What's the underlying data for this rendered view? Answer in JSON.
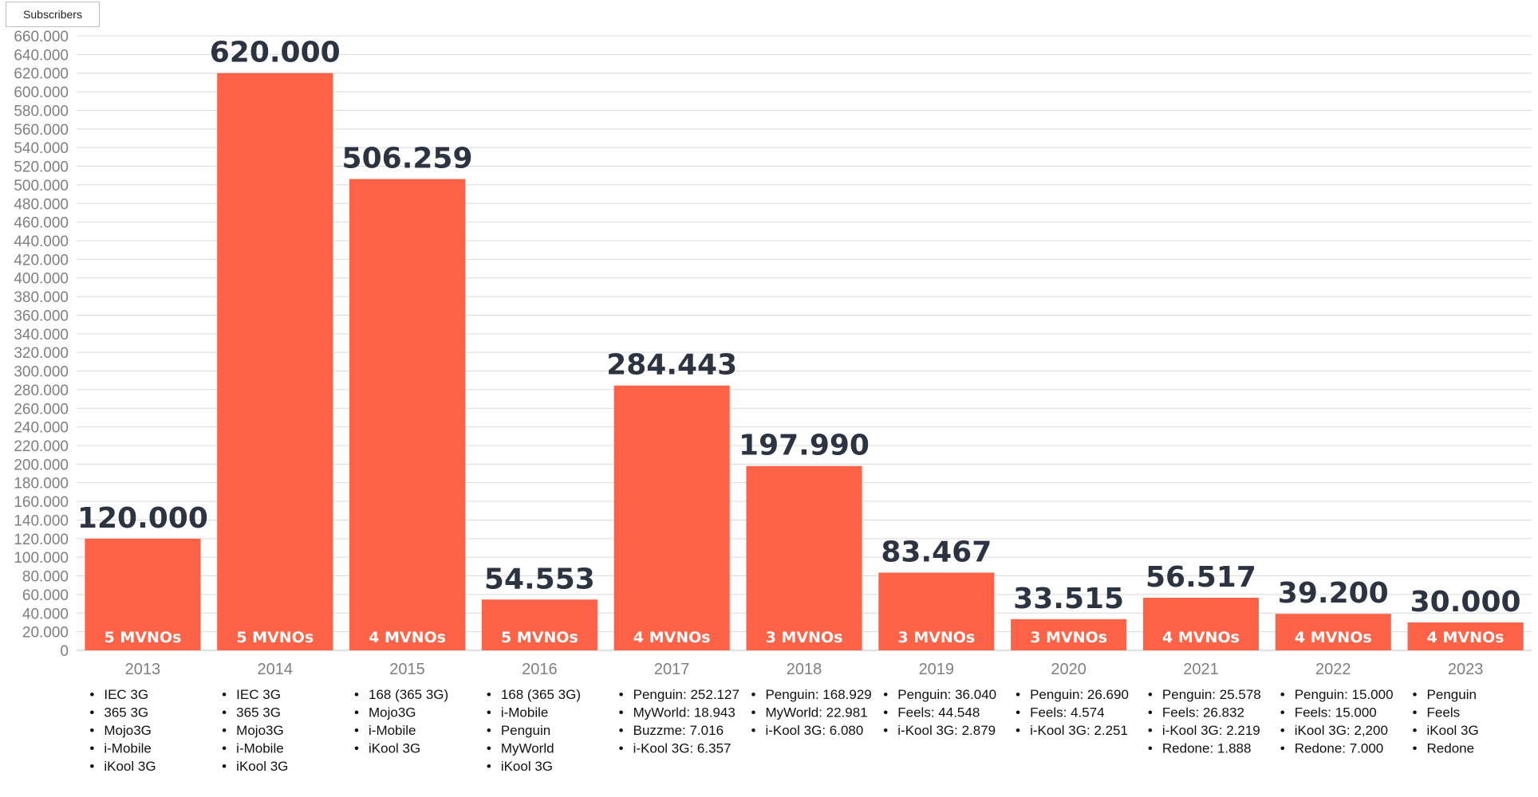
{
  "legend": {
    "label": "Subscribers"
  },
  "colors": {
    "bar": "#fe6347",
    "grid": "#d9d9d9",
    "axis_text": "#7f7f7f",
    "data_label": "#2b3440"
  },
  "chart_data": {
    "type": "bar",
    "ylim": [
      0,
      660000
    ],
    "ytick_step": 20000,
    "grid": true,
    "legend_position": "top-left",
    "series": [
      {
        "name": "Subscribers",
        "values": [
          120000,
          620000,
          506259,
          54553,
          284443,
          197990,
          83467,
          33515,
          56517,
          39200,
          30000
        ]
      }
    ],
    "categories": [
      "2013",
      "2014",
      "2015",
      "2016",
      "2017",
      "2018",
      "2019",
      "2020",
      "2021",
      "2022",
      "2023"
    ],
    "yticks": [
      "0",
      "20.000",
      "40.000",
      "60.000",
      "80.000",
      "100.000",
      "120.000",
      "140.000",
      "160.000",
      "180.000",
      "200.000",
      "220.000",
      "240.000",
      "260.000",
      "280.000",
      "300.000",
      "320.000",
      "340.000",
      "360.000",
      "380.000",
      "400.000",
      "420.000",
      "440.000",
      "460.000",
      "480.000",
      "500.000",
      "520.000",
      "540.000",
      "560.000",
      "580.000",
      "600.000",
      "620.000",
      "640.000",
      "660.000"
    ],
    "data_labels": [
      "120.000",
      "620.000",
      "506.259",
      "54.553",
      "284.443",
      "197.990",
      "83.467",
      "33.515",
      "56.517",
      "39.200",
      "30.000"
    ],
    "bar_labels": [
      "5 MVNOs",
      "5 MVNOs",
      "4 MVNOs",
      "5 MVNOs",
      "4 MVNOs",
      "3 MVNOs",
      "3 MVNOs",
      "3 MVNOs",
      "4 MVNOs",
      "4 MVNOs",
      "4 MVNOs"
    ],
    "notes": [
      [
        "IEC 3G",
        "365 3G",
        "Mojo3G",
        "i-Mobile",
        "iKool 3G"
      ],
      [
        "IEC 3G",
        "365 3G",
        "Mojo3G",
        "i-Mobile",
        "iKool 3G"
      ],
      [
        "168 (365 3G)",
        "Mojo3G",
        "i-Mobile",
        "iKool 3G"
      ],
      [
        "168 (365 3G)",
        "i-Mobile",
        "Penguin",
        "MyWorld",
        "iKool 3G"
      ],
      [
        "Penguin: 252.127",
        "MyWorld: 18.943",
        "Buzzme: 7.016",
        "i-Kool 3G: 6.357"
      ],
      [
        "Penguin: 168.929",
        "MyWorld: 22.981",
        "i-Kool 3G: 6.080"
      ],
      [
        "Penguin: 36.040",
        "Feels: 44.548",
        "i-Kool 3G: 2.879"
      ],
      [
        "Penguin: 26.690",
        "Feels: 4.574",
        "i-Kool 3G: 2.251"
      ],
      [
        "Penguin: 25.578",
        "Feels: 26.832",
        "i-Kool 3G: 2.219",
        "Redone:  1.888"
      ],
      [
        "Penguin: 15.000",
        "Feels: 15.000",
        "iKool 3G: 2,200",
        "Redone: 7.000"
      ],
      [
        "Penguin",
        "Feels",
        "iKool 3G",
        "Redone"
      ]
    ]
  }
}
